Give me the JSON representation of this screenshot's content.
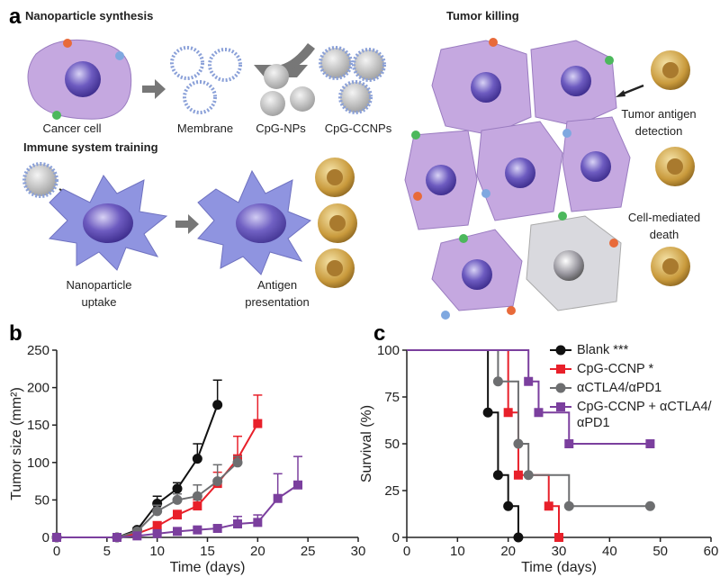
{
  "panel_a": {
    "letter": "a",
    "synthesis": {
      "title": "Nanoparticle synthesis",
      "labels": [
        "Cancer cell",
        "Membrane",
        "CpG-NPs",
        "CpG-CCNPs"
      ]
    },
    "training": {
      "title": "Immune system training",
      "labels": [
        [
          "Nanoparticle",
          "uptake"
        ],
        [
          "Antigen",
          "presentation"
        ]
      ]
    },
    "killing": {
      "title": "Tumor killing",
      "labels": [
        [
          "Tumor antigen",
          "detection"
        ],
        [
          "Cell-mediated",
          "death"
        ]
      ]
    }
  },
  "panel_letters": [
    "b",
    "c"
  ],
  "chart_data": [
    {
      "type": "line",
      "xlabel": "Time (days)",
      "ylabel": "Tumor size (mm²)",
      "xlim": [
        0,
        30
      ],
      "xticks": [
        0,
        5,
        10,
        15,
        20,
        25,
        30
      ],
      "ylim": [
        0,
        250
      ],
      "yticks": [
        0,
        50,
        100,
        150,
        200,
        250
      ],
      "series": [
        {
          "color": "#111111",
          "marker": "circle",
          "x": [
            0,
            6,
            8,
            10,
            12,
            14,
            16
          ],
          "values": [
            0,
            0,
            10,
            45,
            65,
            105,
            177
          ],
          "errors": [
            null,
            null,
            3,
            10,
            8,
            20,
            33
          ]
        },
        {
          "color": "#e8202a",
          "marker": "square",
          "x": [
            0,
            6,
            8,
            10,
            12,
            14,
            16,
            18,
            20
          ],
          "values": [
            0,
            0,
            5,
            15,
            30,
            42,
            72,
            105,
            152
          ],
          "errors": [
            null,
            null,
            2,
            6,
            6,
            8,
            15,
            30,
            38
          ]
        },
        {
          "color": "#6d6e70",
          "marker": "circle",
          "x": [
            0,
            6,
            8,
            10,
            12,
            14,
            16,
            18
          ],
          "values": [
            0,
            0,
            8,
            35,
            50,
            55,
            75,
            100
          ],
          "errors": [
            null,
            null,
            3,
            8,
            8,
            15,
            22,
            8
          ]
        },
        {
          "color": "#7b3f9e",
          "marker": "square",
          "x": [
            0,
            6,
            8,
            10,
            12,
            14,
            16,
            18,
            20,
            22,
            24
          ],
          "values": [
            0,
            0,
            2,
            5,
            8,
            10,
            12,
            18,
            20,
            52,
            70
          ],
          "errors": [
            null,
            null,
            1,
            2,
            3,
            3,
            4,
            10,
            10,
            33,
            38
          ]
        }
      ]
    },
    {
      "type": "step",
      "xlabel": "Time (days)",
      "ylabel": "Survival (%)",
      "xlim": [
        0,
        60
      ],
      "xticks": [
        0,
        10,
        20,
        30,
        40,
        50,
        60
      ],
      "ylim": [
        0,
        100
      ],
      "yticks": [
        0,
        25,
        50,
        75,
        100
      ],
      "legend": "upper right",
      "series": [
        {
          "name": "Blank ***",
          "color": "#111111",
          "marker": "circle",
          "x": [
            0,
            16,
            18,
            20,
            22
          ],
          "values": [
            100,
            66.7,
            33.3,
            16.7,
            0
          ]
        },
        {
          "name": "CpG-CCNP *",
          "color": "#e8202a",
          "marker": "square",
          "x": [
            0,
            20,
            22,
            28,
            30
          ],
          "values": [
            100,
            66.7,
            33.3,
            16.7,
            0
          ]
        },
        {
          "name": "αCTLA4/αPD1",
          "color": "#6d6e70",
          "marker": "circle",
          "x": [
            0,
            18,
            22,
            24,
            32,
            48
          ],
          "values": [
            100,
            83.3,
            50,
            33.3,
            16.7,
            16.7
          ]
        },
        {
          "name": "CpG-CCNP + αCTLA4/αPD1",
          "color": "#7b3f9e",
          "marker": "square",
          "x": [
            0,
            24,
            26,
            32,
            48
          ],
          "values": [
            100,
            83.3,
            66.7,
            50,
            50
          ]
        }
      ]
    }
  ]
}
